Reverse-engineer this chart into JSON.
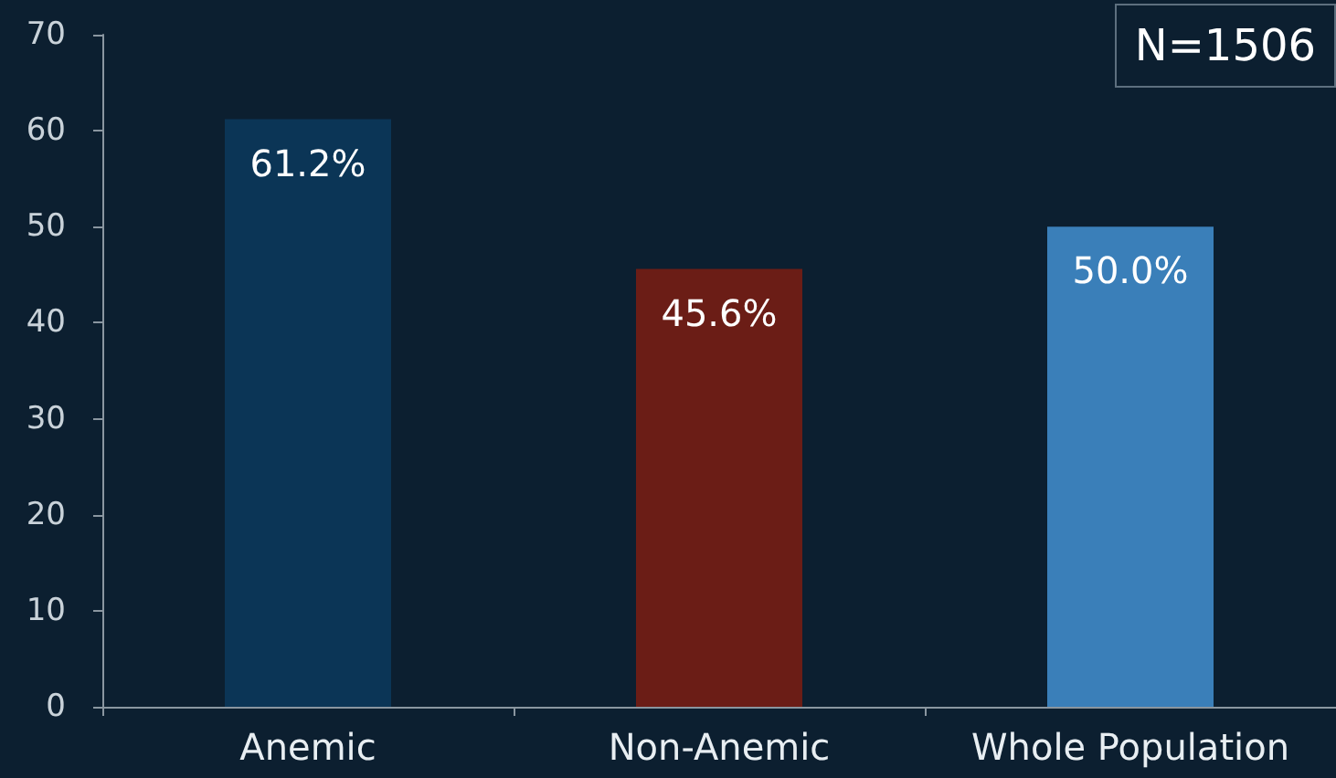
{
  "chart_data": {
    "type": "bar",
    "categories": [
      "Anemic",
      "Non-Anemic",
      "Whole Population"
    ],
    "values": [
      61.2,
      45.6,
      50.0
    ],
    "colors": [
      "#0b3556",
      "#6b1d16",
      "#3a7fb9"
    ],
    "value_labels": [
      "61.2%",
      "45.6%",
      "50.0%"
    ],
    "ylim": [
      0,
      70
    ],
    "yticks": [
      0,
      10,
      20,
      30,
      40,
      50,
      60,
      70
    ],
    "annotations": [
      "N=1506"
    ],
    "grid": false
  }
}
